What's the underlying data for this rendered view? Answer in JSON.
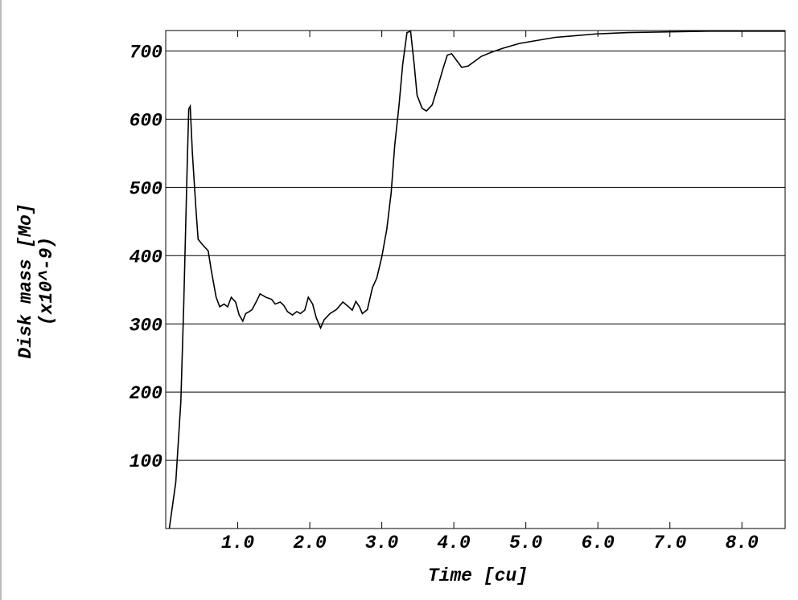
{
  "chart_data": {
    "type": "line",
    "xlabel": "Time [cu]",
    "ylabel": [
      "Disk mass [Mo]",
      "(x10^-9)"
    ],
    "x": [
      0.05,
      0.14,
      0.21,
      0.25,
      0.3,
      0.32,
      0.34,
      0.37,
      0.42,
      0.45,
      0.52,
      0.59,
      0.63,
      0.7,
      0.75,
      0.81,
      0.86,
      0.91,
      0.97,
      1.02,
      1.07,
      1.11,
      1.16,
      1.2,
      1.26,
      1.31,
      1.39,
      1.47,
      1.52,
      1.59,
      1.64,
      1.69,
      1.76,
      1.82,
      1.87,
      1.93,
      1.98,
      2.04,
      2.09,
      2.15,
      2.2,
      2.28,
      2.37,
      2.46,
      2.54,
      2.59,
      2.64,
      2.69,
      2.73,
      2.8,
      2.87,
      2.93,
      3.0,
      3.07,
      3.13,
      3.18,
      3.24,
      3.29,
      3.35,
      3.4,
      3.45,
      3.49,
      3.56,
      3.62,
      3.7,
      3.77,
      3.85,
      3.91,
      3.97,
      4.04,
      4.11,
      4.2,
      4.29,
      4.38,
      4.52,
      4.68,
      4.91,
      5.13,
      5.41,
      5.64,
      5.97,
      6.42,
      6.97,
      7.53,
      8.09,
      8.6
    ],
    "series": [
      {
        "color": "#000000",
        "values": [
          0,
          68,
          186,
          327,
          539,
          615,
          619,
          551,
          468,
          424,
          415,
          407,
          380,
          339,
          325,
          329,
          325,
          339,
          332,
          313,
          304,
          315,
          318,
          321,
          333,
          344,
          339,
          336,
          329,
          332,
          327,
          318,
          313,
          318,
          315,
          320,
          339,
          329,
          309,
          294,
          306,
          315,
          321,
          332,
          325,
          320,
          333,
          325,
          315,
          321,
          353,
          367,
          398,
          439,
          492,
          562,
          621,
          680,
          727,
          729,
          680,
          635,
          616,
          612,
          621,
          645,
          674,
          694,
          696,
          686,
          676,
          678,
          685,
          692,
          698,
          704,
          711,
          715,
          720,
          722,
          725,
          727,
          728,
          729,
          729,
          729
        ]
      }
    ],
    "xlim": [
      0,
      8.6
    ],
    "ylim": [
      0,
      730
    ],
    "xticks": [
      {
        "value": 1,
        "label": "1.0"
      },
      {
        "value": 2,
        "label": "2.0"
      },
      {
        "value": 3,
        "label": "3.0"
      },
      {
        "value": 4,
        "label": "4.0"
      },
      {
        "value": 5,
        "label": "5.0"
      },
      {
        "value": 6,
        "label": "6.0"
      },
      {
        "value": 7,
        "label": "7.0"
      },
      {
        "value": 8,
        "label": "8.0"
      }
    ],
    "yticks": [
      100,
      200,
      300,
      400,
      500,
      600,
      700
    ],
    "grid": true
  }
}
